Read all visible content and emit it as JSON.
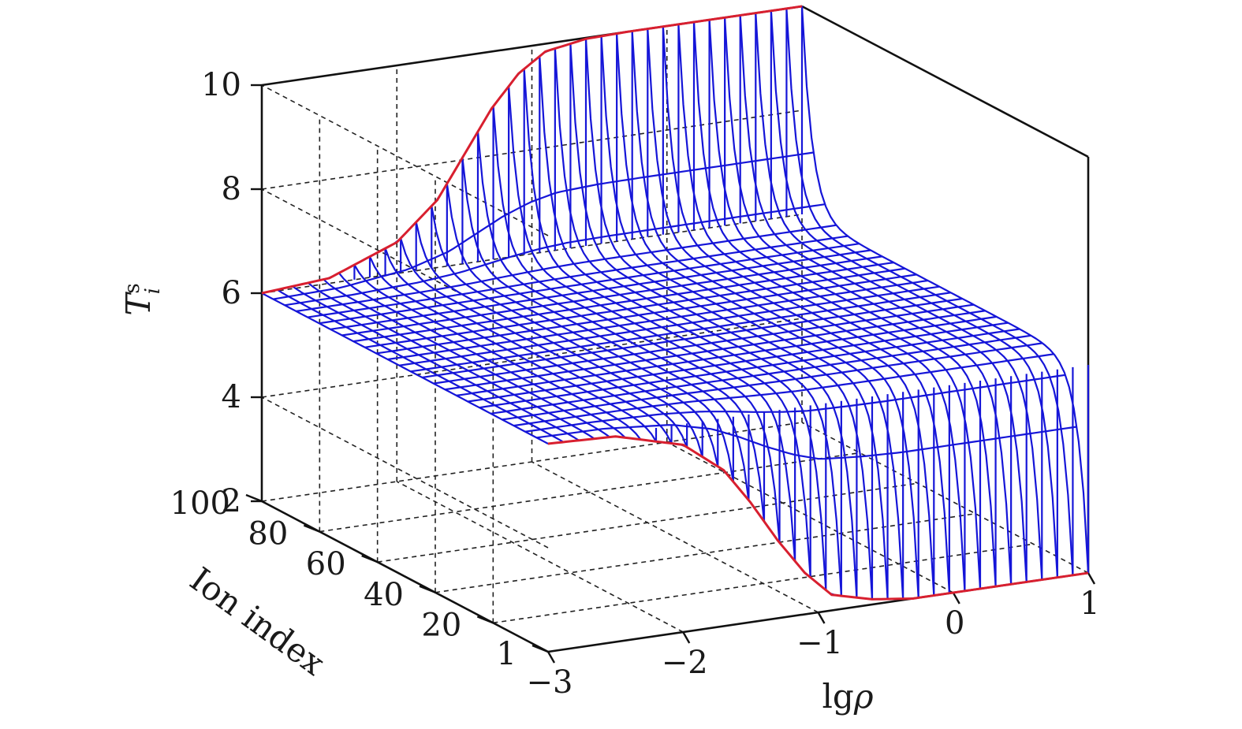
{
  "chart_data": {
    "type": "surface3d",
    "title": "",
    "axes": {
      "x": {
        "label": "lgρ",
        "label_main": "lg",
        "label_symbol": "ρ",
        "range": [
          -3,
          1
        ],
        "ticks": [
          -3,
          -2,
          -1,
          0,
          1
        ],
        "tick_labels": [
          "−3",
          "−2",
          "−1",
          "0",
          "1"
        ]
      },
      "y": {
        "label": "Ion index",
        "range": [
          1,
          100
        ],
        "ticks": [
          1,
          20,
          40,
          60,
          80,
          100
        ],
        "tick_labels": [
          "1",
          "20",
          "40",
          "60",
          "80",
          "100"
        ]
      },
      "z": {
        "label": "T_i^s",
        "label_main": "T",
        "label_sub": "i",
        "label_sup": "s",
        "range": [
          2,
          10
        ],
        "ticks": [
          2,
          4,
          6,
          8,
          10
        ],
        "tick_labels": [
          "2",
          "4",
          "6",
          "8",
          "10"
        ]
      }
    },
    "grid": true,
    "colors": {
      "surface": "#1515d8",
      "edge_curves": "#d81f2f",
      "grid": "#222222",
      "axes": "#111111"
    },
    "surface": {
      "description_values": "T_i^s vs lg rho and ion index; constant 6 at lg rho = -3 for all ions; at lg rho = 1 rises to 10 for ion index 100 and drops to 2 for ion index 1",
      "curves": [
        {
          "name": "ion index 100 (red)",
          "ion_index": 100,
          "x": [
            -3,
            -2.5,
            -2,
            -1.7,
            -1.5,
            -1.3,
            -1.1,
            -0.9,
            -0.6,
            -0.3,
            0,
            0.5,
            1
          ],
          "z": [
            6,
            6.1,
            6.6,
            7.3,
            8.1,
            8.9,
            9.5,
            9.85,
            9.98,
            10.0,
            10.0,
            10.0,
            10.0
          ]
        },
        {
          "name": "ion index 1 (red)",
          "ion_index": 1,
          "x": [
            -3,
            -2.5,
            -2,
            -1.7,
            -1.5,
            -1.3,
            -1.1,
            -0.9,
            -0.6,
            -0.3,
            0,
            0.5,
            1
          ],
          "z": [
            6,
            5.95,
            5.6,
            5.0,
            4.3,
            3.5,
            2.8,
            2.3,
            2.1,
            2.0,
            2.0,
            2.0,
            2.0
          ]
        }
      ]
    }
  }
}
